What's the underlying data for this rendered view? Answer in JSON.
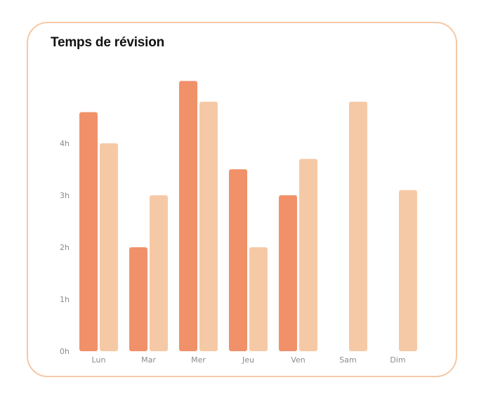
{
  "card": {
    "title": "Temps de révision"
  },
  "chart_data": {
    "type": "bar",
    "title": "Temps de révision",
    "xlabel": "",
    "ylabel": "",
    "categories": [
      "Lun",
      "Mar",
      "Mer",
      "Jeu",
      "Ven",
      "Sam",
      "Dim"
    ],
    "y_ticks": [
      "0h",
      "1h",
      "2h",
      "3h",
      "4h"
    ],
    "ylim": [
      0,
      5.2
    ],
    "grid": false,
    "legend": "none",
    "series": [
      {
        "color": "#f0916a",
        "values": [
          4.6,
          2.0,
          5.2,
          3.5,
          3.0,
          null,
          null
        ]
      },
      {
        "color": "#f6c9a6",
        "values": [
          4.0,
          3.0,
          4.8,
          2.0,
          3.7,
          4.8,
          3.1
        ]
      }
    ]
  },
  "colors": {
    "card_border": "#f6c8a6",
    "title": "#111111",
    "tick": "#8b8b8b"
  }
}
